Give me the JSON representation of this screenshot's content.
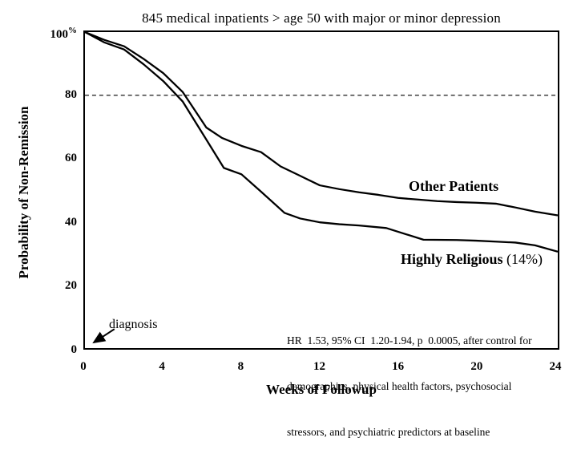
{
  "page": {
    "background": "#ffffff",
    "foreground": "#000000"
  },
  "chart_data": {
    "type": "line",
    "subtype": "survival-curve",
    "title": "845 medical inpatients > age 50 with major or minor depression",
    "xlabel": "Weeks of Followup",
    "ylabel": "Probability of Non-Remission",
    "xlim": [
      0,
      24
    ],
    "ylim": [
      0,
      100
    ],
    "x_ticks": [
      "0",
      "4",
      "8",
      "12",
      "16",
      "20",
      "24"
    ],
    "y_ticks": [
      "100",
      "80",
      "60",
      "40",
      "20",
      "0"
    ],
    "y_unit": "%",
    "grid": "off",
    "legend_position": "labels next to curves",
    "line_color": "#000000",
    "series": [
      {
        "name": "Other Patients",
        "points": [
          [
            0,
            100
          ],
          [
            1,
            97.5
          ],
          [
            2,
            95.5
          ],
          [
            3,
            91.5
          ],
          [
            4,
            87
          ],
          [
            5,
            81
          ],
          [
            6.2,
            69.8
          ],
          [
            7,
            66.5
          ],
          [
            8,
            64
          ],
          [
            9,
            62
          ],
          [
            10,
            57.5
          ],
          [
            11,
            54.5
          ],
          [
            12,
            51.5
          ],
          [
            13,
            50.3
          ],
          [
            14,
            49.3
          ],
          [
            15,
            48.5
          ],
          [
            16,
            47.5
          ],
          [
            17,
            47
          ],
          [
            18,
            46.5
          ],
          [
            19,
            46.2
          ],
          [
            20,
            46
          ],
          [
            21,
            45.7
          ],
          [
            22,
            44.5
          ],
          [
            23,
            43.2
          ],
          [
            24.2,
            42
          ]
        ]
      },
      {
        "name": "Highly Religious (14%)",
        "label_parts": [
          "Highly Religious",
          " (14%)"
        ],
        "points": [
          [
            0,
            100
          ],
          [
            1,
            96.7
          ],
          [
            2,
            94.5
          ],
          [
            3,
            89.8
          ],
          [
            4,
            84.5
          ],
          [
            5,
            78
          ],
          [
            6,
            68
          ],
          [
            7.1,
            57
          ],
          [
            8,
            55
          ],
          [
            9,
            49.5
          ],
          [
            10.2,
            42.8
          ],
          [
            11,
            41
          ],
          [
            12,
            39.8
          ],
          [
            13,
            39.2
          ],
          [
            14,
            38.8
          ],
          [
            15.4,
            38
          ],
          [
            17.3,
            34.3
          ],
          [
            19,
            34.2
          ],
          [
            20,
            34
          ],
          [
            21,
            33.7
          ],
          [
            22,
            33.4
          ],
          [
            23,
            32.5
          ],
          [
            24.2,
            30.5
          ]
        ]
      }
    ],
    "annotations": {
      "reference_line": {
        "y": 80,
        "style": "dashed"
      },
      "diagnosis": {
        "text": "diagnosis",
        "arrow_points_to": "x-axis at week 0"
      },
      "stats_note": {
        "lines": [
          "HR  1.53, 95% CI  1.20-1.94, p  0.0005, after control for",
          "demographics, physical health factors, psychosocial",
          "stressors, and psychiatric predictors at baseline"
        ]
      }
    }
  }
}
